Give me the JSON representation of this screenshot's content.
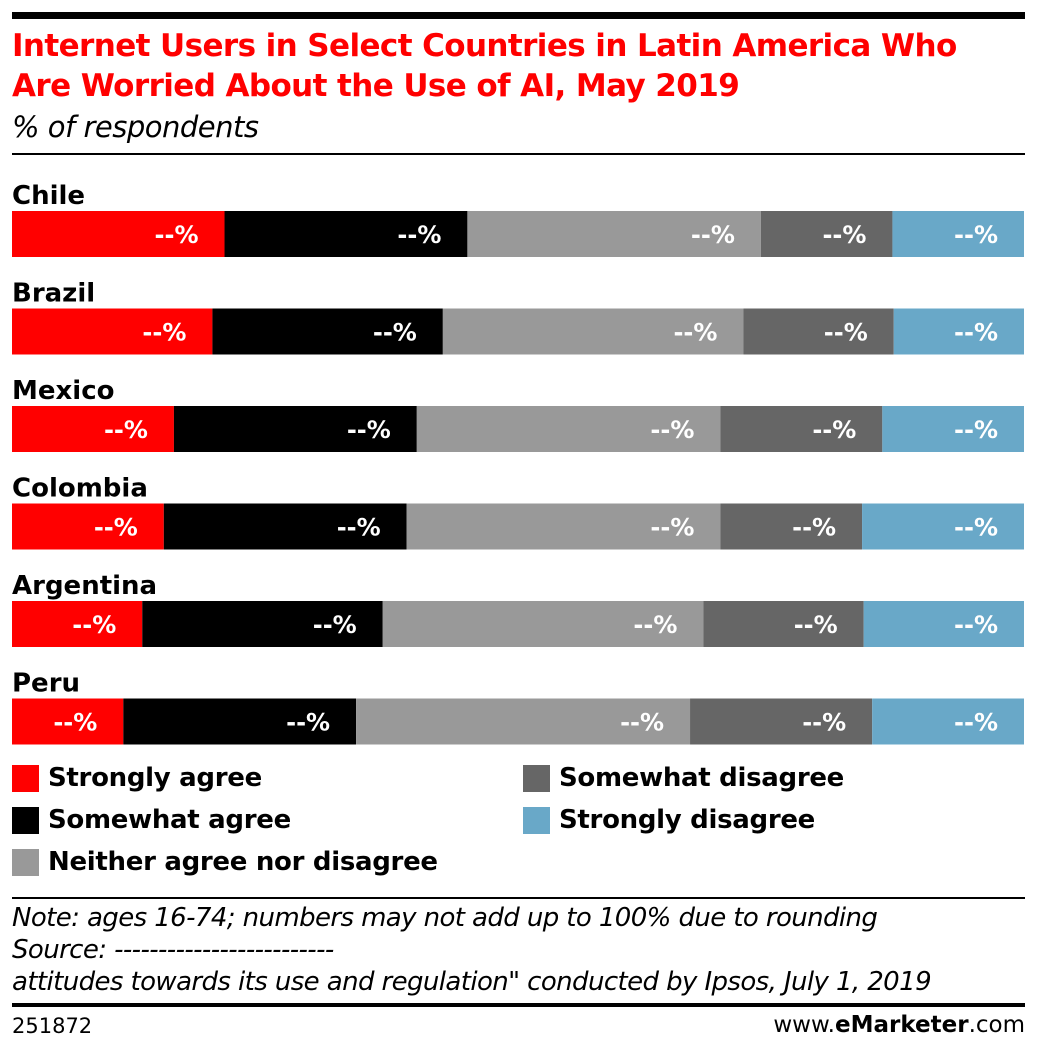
{
  "header": {
    "title": "Internet Users in Select Countries in Latin America Who Are Worried About the Use of AI, May 2019",
    "subtitle": "% of respondents"
  },
  "chart_data": {
    "type": "bar",
    "orientation": "horizontal",
    "stacked": true,
    "categories": [
      "Chile",
      "Brazil",
      "Mexico",
      "Colombia",
      "Argentina",
      "Peru"
    ],
    "series": [
      {
        "name": "Strongly agree",
        "color": "#ff0000",
        "values": [
          21,
          20,
          16,
          15,
          13,
          11
        ],
        "labels": [
          "--%",
          "--%",
          "--%",
          "--%",
          "--%",
          "--%"
        ]
      },
      {
        "name": "Somewhat agree",
        "color": "#000000",
        "values": [
          24,
          23,
          24,
          24,
          24,
          23
        ],
        "labels": [
          "--%",
          "--%",
          "--%",
          "--%",
          "--%",
          "--%"
        ]
      },
      {
        "name": "Neither agree nor disagree",
        "color": "#999999",
        "values": [
          29,
          30,
          30,
          31,
          32,
          33
        ],
        "labels": [
          "--%",
          "--%",
          "--%",
          "--%",
          "--%",
          "--%"
        ]
      },
      {
        "name": "Somewhat disagree",
        "color": "#666666",
        "values": [
          13,
          15,
          16,
          14,
          16,
          18
        ],
        "labels": [
          "--%",
          "--%",
          "--%",
          "--%",
          "--%",
          "--%"
        ]
      },
      {
        "name": "Strongly disagree",
        "color": "#69a8c8",
        "values": [
          13,
          13,
          14,
          16,
          16,
          15
        ],
        "labels": [
          "--%",
          "--%",
          "--%",
          "--%",
          "--%",
          "--%"
        ]
      }
    ],
    "xlim": [
      0,
      100
    ],
    "grid": false,
    "legend_position": "bottom"
  },
  "notes": {
    "line1": "Note: ages 16-74; numbers may not add up to 100% due to rounding",
    "line2": "Source: -------------------------",
    "line3": "attitudes towards its use and regulation\" conducted by Ipsos, July 1, 2019"
  },
  "footer": {
    "chart_id": "251872",
    "brand_prefix": "www.",
    "brand_name": "eMarketer",
    "brand_suffix": ".com"
  }
}
